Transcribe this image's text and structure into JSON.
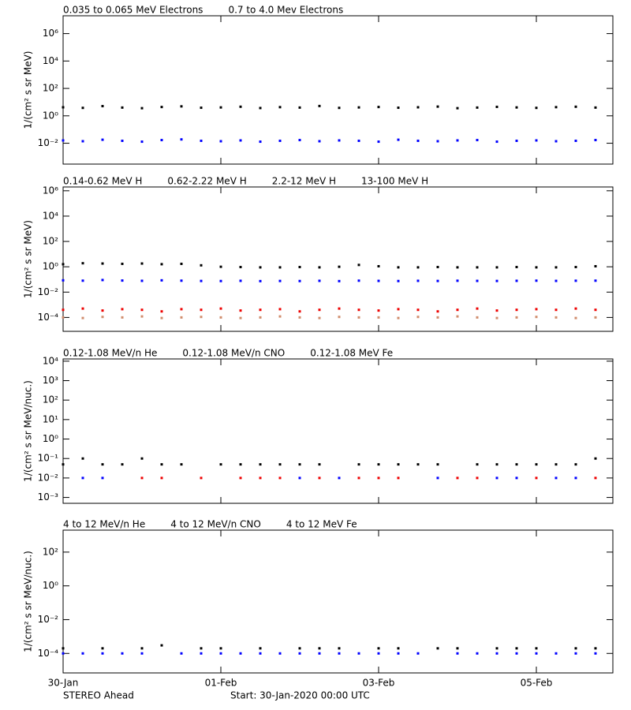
{
  "chart_data": [
    {
      "type": "scatter",
      "log_y": true,
      "ylabel": "1/(cm² s sr MeV)",
      "ylim": [
        0.0003,
        20000000
      ],
      "yticks": [
        {
          "value": 0.01,
          "label": "10⁻²"
        },
        {
          "value": 1,
          "label": "10⁰"
        },
        {
          "value": 100,
          "label": "10²"
        },
        {
          "value": 10000,
          "label": "10⁴"
        },
        {
          "value": 1000000,
          "label": "10⁶"
        }
      ],
      "xlim": [
        0,
        6.97
      ],
      "xticks": [
        0,
        2,
        4,
        6
      ],
      "x": [
        0,
        0.25,
        0.5,
        0.75,
        1,
        1.25,
        1.5,
        1.75,
        2,
        2.25,
        2.5,
        2.75,
        3,
        3.25,
        3.5,
        3.75,
        4,
        4.25,
        4.5,
        4.75,
        5,
        5.25,
        5.5,
        5.75,
        6,
        6.25,
        6.5,
        6.75
      ],
      "series": [
        {
          "name": "0.035 to 0.065 MeV Electrons",
          "color": "#000000",
          "values": [
            4.2,
            3.8,
            5.1,
            4.0,
            3.6,
            4.4,
            4.9,
            3.9,
            4.1,
            4.6,
            3.7,
            4.3,
            4.0,
            5.2,
            3.8,
            4.1,
            4.4,
            3.9,
            4.2,
            4.7,
            3.6,
            4.0,
            4.5,
            4.1,
            3.8,
            4.3,
            4.6,
            4.0
          ]
        },
        {
          "name": "0.7 to 4.0 Mev Electrons",
          "color": "#0000ff",
          "values": [
            0.016,
            0.014,
            0.018,
            0.015,
            0.013,
            0.017,
            0.019,
            0.015,
            0.014,
            0.016,
            0.013,
            0.015,
            0.017,
            0.014,
            0.016,
            0.015,
            0.013,
            0.018,
            0.015,
            0.014,
            0.016,
            0.017,
            0.013,
            0.015,
            0.016,
            0.014,
            0.015,
            0.017
          ]
        }
      ]
    },
    {
      "type": "scatter",
      "log_y": true,
      "ylabel": "1/(cm² s sr MeV)",
      "ylim": [
        8e-06,
        2000000
      ],
      "yticks": [
        {
          "value": 0.0001,
          "label": "10⁻⁴"
        },
        {
          "value": 0.01,
          "label": "10⁻²"
        },
        {
          "value": 1,
          "label": "10⁰"
        },
        {
          "value": 100,
          "label": "10²"
        },
        {
          "value": 10000,
          "label": "10⁴"
        },
        {
          "value": 1000000,
          "label": "10⁶"
        }
      ],
      "xlim": [
        0,
        6.97
      ],
      "xticks": [
        0,
        2,
        4,
        6
      ],
      "x": [
        0,
        0.25,
        0.5,
        0.75,
        1,
        1.25,
        1.5,
        1.75,
        2,
        2.25,
        2.5,
        2.75,
        3,
        3.25,
        3.5,
        3.75,
        4,
        4.25,
        4.5,
        4.75,
        5,
        5.25,
        5.5,
        5.75,
        6,
        6.25,
        6.5,
        6.75
      ],
      "series": [
        {
          "name": "0.14-0.62 MeV H",
          "color": "#000000",
          "values": [
            1.6,
            1.9,
            1.8,
            1.7,
            1.8,
            1.6,
            1.7,
            1.3,
            1.0,
            0.95,
            0.9,
            0.9,
            0.95,
            0.9,
            1.0,
            1.4,
            1.1,
            0.9,
            0.9,
            0.95,
            0.9,
            0.9,
            0.9,
            0.95,
            0.9,
            0.9,
            0.95,
            1.1
          ]
        },
        {
          "name": "0.62-2.22 MeV H",
          "color": "#0000ff",
          "values": [
            0.085,
            0.08,
            0.09,
            0.082,
            0.078,
            0.085,
            0.08,
            0.076,
            0.075,
            0.078,
            0.074,
            0.076,
            0.075,
            0.078,
            0.074,
            0.08,
            0.077,
            0.075,
            0.078,
            0.076,
            0.079,
            0.077,
            0.076,
            0.078,
            0.08,
            0.077,
            0.079,
            0.08
          ]
        },
        {
          "name": "2.2-12 MeV H",
          "color": "#d08c6c",
          "values": [
            0.0001,
            9e-05,
            0.00011,
            0.0001,
            0.00012,
            9e-05,
            0.0001,
            0.00011,
            0.0001,
            9e-05,
            0.0001,
            0.00012,
            0.0001,
            9e-05,
            0.00011,
            0.0001,
            0.0001,
            9e-05,
            0.00011,
            0.0001,
            0.00012,
            0.0001,
            9e-05,
            0.0001,
            0.00011,
            0.0001,
            9e-05,
            0.0001
          ]
        },
        {
          "name": "13-100 MeV H",
          "color": "#ee0000",
          "values": [
            0.0004,
            0.0005,
            0.00035,
            0.00045,
            0.0004,
            0.0003,
            0.00045,
            0.0004,
            0.0005,
            0.00035,
            0.0004,
            0.00045,
            0.0003,
            0.0004,
            0.0005,
            0.0004,
            0.00035,
            0.00045,
            0.0004,
            0.0003,
            0.0004,
            0.0005,
            0.00035,
            0.0004,
            0.00045,
            0.0004,
            0.0005,
            0.0004
          ]
        }
      ]
    },
    {
      "type": "scatter",
      "log_y": true,
      "ylabel": "1/(cm² s sr MeV/nuc.)",
      "ylim": [
        0.0005,
        13000
      ],
      "yticks": [
        {
          "value": 0.001,
          "label": "10⁻³"
        },
        {
          "value": 0.01,
          "label": "10⁻²"
        },
        {
          "value": 0.1,
          "label": "10⁻¹"
        },
        {
          "value": 1,
          "label": "10⁰"
        },
        {
          "value": 10,
          "label": "10¹"
        },
        {
          "value": 100,
          "label": "10²"
        },
        {
          "value": 1000,
          "label": "10³"
        },
        {
          "value": 10000,
          "label": "10⁴"
        }
      ],
      "xlim": [
        0,
        6.97
      ],
      "xticks": [
        0,
        2,
        4,
        6
      ],
      "x": [
        0,
        0.25,
        0.5,
        0.75,
        1,
        1.25,
        1.5,
        1.75,
        2,
        2.25,
        2.5,
        2.75,
        3,
        3.25,
        3.5,
        3.75,
        4,
        4.25,
        4.5,
        4.75,
        5,
        5.25,
        5.5,
        5.75,
        6,
        6.25,
        6.5,
        6.75
      ],
      "series": [
        {
          "name": "0.12-1.08 MeV/n He",
          "color": "#000000",
          "values": [
            0.05,
            0.1,
            0.05,
            0.05,
            0.1,
            0.05,
            0.05,
            null,
            0.05,
            0.05,
            0.05,
            0.05,
            0.05,
            0.05,
            null,
            0.05,
            0.05,
            0.05,
            0.05,
            0.05,
            null,
            0.05,
            0.05,
            0.05,
            0.05,
            0.05,
            0.05,
            0.1
          ]
        },
        {
          "name": "0.12-1.08 MeV/n CNO",
          "color": "#0000ff",
          "values": [
            null,
            0.01,
            0.01,
            null,
            null,
            null,
            null,
            null,
            null,
            null,
            null,
            null,
            0.01,
            null,
            0.01,
            null,
            null,
            null,
            null,
            0.01,
            null,
            null,
            0.01,
            0.01,
            null,
            0.01,
            0.01,
            null
          ]
        },
        {
          "name": "0.12-1.08 MeV Fe",
          "color": "#ee0000",
          "values": [
            null,
            null,
            null,
            null,
            0.01,
            0.01,
            null,
            0.01,
            null,
            0.01,
            0.01,
            0.01,
            null,
            0.01,
            null,
            0.01,
            0.01,
            0.01,
            null,
            null,
            0.01,
            0.01,
            null,
            null,
            0.01,
            null,
            null,
            0.01
          ]
        }
      ]
    },
    {
      "type": "scatter",
      "log_y": true,
      "ylabel": "1/(cm² s sr MeV/nuc.)",
      "ylim": [
        7e-06,
        2000
      ],
      "yticks": [
        {
          "value": 0.0001,
          "label": "10⁻⁴"
        },
        {
          "value": 0.01,
          "label": "10⁻²"
        },
        {
          "value": 1,
          "label": "10⁰"
        },
        {
          "value": 100,
          "label": "10²"
        }
      ],
      "xlim": [
        0,
        6.97
      ],
      "xticks": [
        {
          "value": 0,
          "label": "30-Jan"
        },
        {
          "value": 2,
          "label": "01-Feb"
        },
        {
          "value": 4,
          "label": "03-Feb"
        },
        {
          "value": 6,
          "label": "05-Feb"
        }
      ],
      "x": [
        0,
        0.25,
        0.5,
        0.75,
        1,
        1.25,
        1.5,
        1.75,
        2,
        2.25,
        2.5,
        2.75,
        3,
        3.25,
        3.5,
        3.75,
        4,
        4.25,
        4.5,
        4.75,
        5,
        5.25,
        5.5,
        5.75,
        6,
        6.25,
        6.5,
        6.75
      ],
      "series": [
        {
          "name": "4 to 12 MeV/n He",
          "color": "#000000",
          "values": [
            0.0002,
            null,
            0.0002,
            null,
            0.0002,
            0.0003,
            null,
            0.0002,
            0.0002,
            null,
            0.0002,
            null,
            0.0002,
            0.0002,
            0.0002,
            null,
            0.0002,
            0.0002,
            null,
            0.0002,
            0.0002,
            null,
            0.0002,
            0.0002,
            0.0002,
            null,
            0.0002,
            0.0002
          ]
        },
        {
          "name": "4 to 12 MeV/n CNO",
          "color": "#0000ff",
          "values": [
            0.0001,
            0.0001,
            0.0001,
            0.0001,
            0.0001,
            null,
            0.0001,
            0.0001,
            0.0001,
            0.0001,
            0.0001,
            0.0001,
            0.0001,
            0.0001,
            0.0001,
            0.0001,
            0.0001,
            0.0001,
            0.0001,
            null,
            0.0001,
            0.0001,
            0.0001,
            0.0001,
            0.0001,
            0.0001,
            0.0001,
            0.0001
          ]
        },
        {
          "name": "4 to 12 MeV Fe",
          "color": "#ee0000",
          "values": [
            null,
            null,
            null,
            null,
            null,
            null,
            null,
            null,
            null,
            null,
            null,
            null,
            null,
            null,
            null,
            null,
            null,
            null,
            null,
            null,
            null,
            null,
            null,
            null,
            null,
            null,
            null,
            null
          ]
        }
      ]
    }
  ],
  "footer": {
    "spacecraft": "STEREO Ahead",
    "start": "Start: 30-Jan-2020 00:00 UTC"
  }
}
